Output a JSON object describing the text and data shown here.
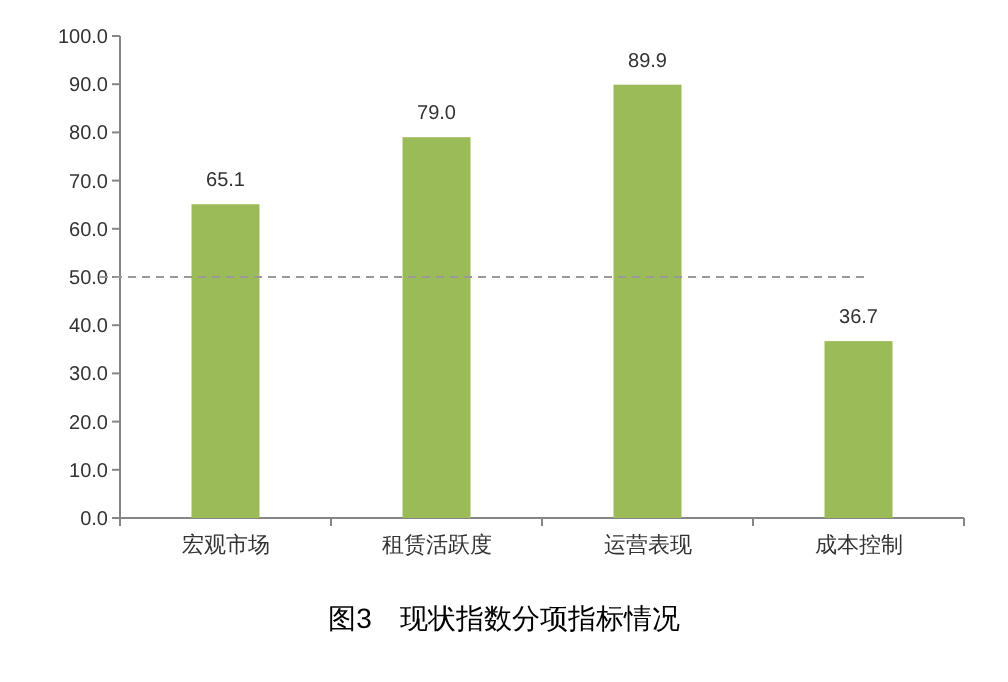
{
  "chart_data": {
    "type": "bar",
    "title": "图3　现状指数分项指标情况",
    "categories": [
      "宏观市场",
      "租赁活跃度",
      "运营表现",
      "成本控制"
    ],
    "values": [
      65.1,
      79.0,
      89.9,
      36.7
    ],
    "color": "#9bbb59",
    "ylim": [
      0,
      100
    ],
    "yticks": [
      {
        "value": 0,
        "label": "0.0"
      },
      {
        "value": 10,
        "label": "10.0"
      },
      {
        "value": 20,
        "label": "20.0"
      },
      {
        "value": 30,
        "label": "30.0"
      },
      {
        "value": 40,
        "label": "40.0"
      },
      {
        "value": 50,
        "label": "50.0"
      },
      {
        "value": 60,
        "label": "60.0"
      },
      {
        "value": 70,
        "label": "70.0"
      },
      {
        "value": 80,
        "label": "80.0"
      },
      {
        "value": 90,
        "label": "90.0"
      },
      {
        "value": 100,
        "label": "100.0"
      }
    ],
    "ref_lines": [
      {
        "axis": "y",
        "value": 50,
        "label": null,
        "color": "#999999",
        "line_style": "dashed"
      }
    ],
    "value_labels": [
      "65.1",
      "79.0",
      "89.9",
      "36.7"
    ],
    "grid": false
  }
}
